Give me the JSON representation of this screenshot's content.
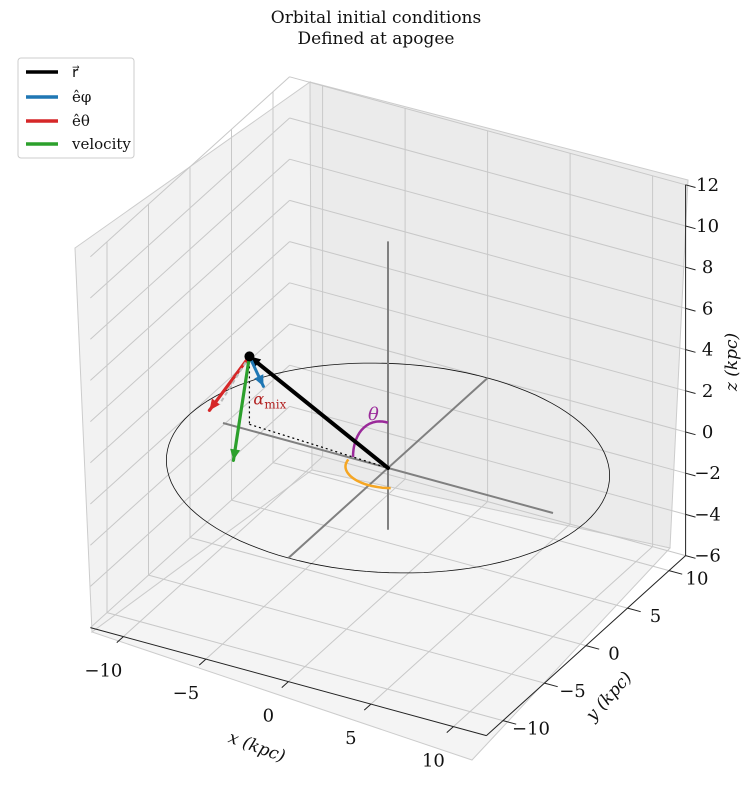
{
  "chart_data": {
    "type": "3d-vector-diagram",
    "title": "Orbital initial conditions",
    "subtitle": "Defined at apogee",
    "xlabel": "x (kpc)",
    "ylabel": "y (kpc)",
    "zlabel": "z (kpc)",
    "xlim": [
      -12,
      12
    ],
    "ylim": [
      -12,
      12
    ],
    "zlim": [
      -6,
      12
    ],
    "x_ticks": [
      "−10",
      "−5",
      "0",
      "5",
      "10"
    ],
    "y_ticks": [
      "−10",
      "−5",
      "0",
      "5",
      "10"
    ],
    "z_ticks": [
      "−6",
      "−4",
      "−2",
      "0",
      "2",
      "4",
      "6",
      "8",
      "10",
      "12"
    ],
    "grid": true,
    "legend_position": "top-left",
    "legend": [
      {
        "label": "r⃗",
        "color": "#000000"
      },
      {
        "label": "êφ",
        "color": "#1f77b4"
      },
      {
        "label": "êθ",
        "color": "#d62728"
      },
      {
        "label": "velocity",
        "color": "#2ca02c"
      }
    ],
    "apogee_point": [
      -8.7,
      0.6,
      3.3
    ],
    "vectors": [
      {
        "name": "r⃗",
        "color": "#000000"
      },
      {
        "name": "êφ",
        "color": "#1f77b4"
      },
      {
        "name": "êθ",
        "color": "#d62728"
      },
      {
        "name": "velocity",
        "color": "#2ca02c"
      }
    ],
    "circle_radius": 12,
    "annotations": {
      "theta": "θ",
      "alpha_mix": "α",
      "alpha_sub": "mix"
    }
  }
}
